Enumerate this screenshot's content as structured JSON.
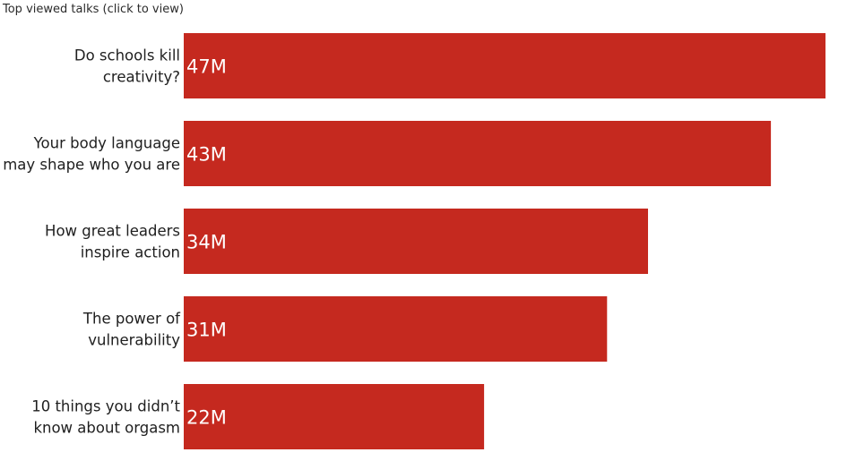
{
  "chart_data": {
    "type": "bar",
    "orientation": "horizontal",
    "title": "Top viewed talks (click to view)",
    "categories": [
      [
        "Do schools kill",
        "creativity?"
      ],
      [
        "Your body language",
        "may shape who you are"
      ],
      [
        "How great leaders",
        "inspire action"
      ],
      [
        "The power of",
        "vulnerability"
      ],
      [
        "10 things you didn’t",
        "know about orgasm"
      ]
    ],
    "values": [
      47,
      43,
      34,
      31,
      22
    ],
    "value_labels": [
      "47M",
      "43M",
      "34M",
      "31M",
      "22M"
    ],
    "unit": "M views",
    "xlim": [
      0,
      47
    ],
    "grid": false,
    "colors": {
      "bar": "#C5291F",
      "bar_label": "#ffffff",
      "category_label": "#1f1f1f"
    }
  }
}
